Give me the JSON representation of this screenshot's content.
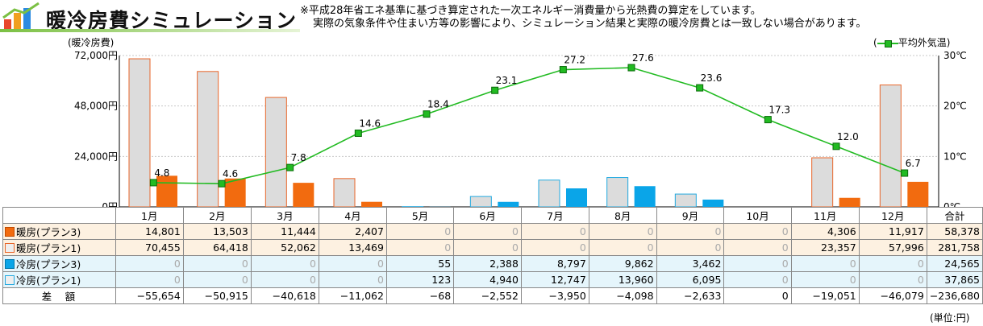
{
  "header": {
    "title": "暖冷房費シミュレーション",
    "note_line1": "※平成28年省エネ基準に基づき算定された一次エネルギー消費量から光熱費の算定をしています。",
    "note_line2": "実際の気象条件や住まい方等の影響により、シミュレーション結果と実際の暖冷房費とは一致しない場合があります。"
  },
  "chart_data": {
    "type": "bar",
    "categories": [
      "1月",
      "2月",
      "3月",
      "4月",
      "5月",
      "6月",
      "7月",
      "8月",
      "9月",
      "10月",
      "11月",
      "12月"
    ],
    "series": [
      {
        "name": "暖房(プラン1)",
        "values": [
          70455,
          64418,
          52062,
          13469,
          0,
          0,
          0,
          0,
          0,
          0,
          23357,
          57996
        ],
        "color": "#dcdcdc",
        "stroke": "#e8662a"
      },
      {
        "name": "暖房(プラン3)",
        "values": [
          14801,
          13503,
          11444,
          2407,
          0,
          0,
          0,
          0,
          0,
          0,
          4306,
          11917
        ],
        "color": "#f26b0f"
      },
      {
        "name": "冷房(プラン1)",
        "values": [
          0,
          0,
          0,
          0,
          123,
          4940,
          12747,
          13960,
          6095,
          0,
          0,
          0
        ],
        "color": "#dcdcdc",
        "stroke": "#22a9e0"
      },
      {
        "name": "冷房(プラン3)",
        "values": [
          0,
          0,
          0,
          0,
          55,
          2388,
          8797,
          9862,
          3462,
          0,
          0,
          0
        ],
        "color": "#0aa5e8"
      }
    ],
    "line": {
      "name": "平均外気温",
      "values": [
        4.8,
        4.6,
        7.8,
        14.6,
        18.4,
        23.1,
        27.2,
        27.6,
        23.6,
        17.3,
        12.0,
        6.7
      ],
      "labels": [
        "4.8",
        "4.6",
        "7.8",
        "14.6",
        "18.4",
        "23.1",
        "27.2",
        "27.6",
        "23.6",
        "17.3",
        "12.0",
        "6.7"
      ],
      "color": "#22bb22"
    },
    "ylabel": "(暖冷房費)",
    "ylim": [
      0,
      72000
    ],
    "yticks": [
      "0円",
      "24,000円",
      "48,000円",
      "72,000円"
    ],
    "ytick_values": [
      0,
      24000,
      48000,
      72000
    ],
    "y2lim": [
      0,
      30
    ],
    "y2ticks": [
      "0℃",
      "10℃",
      "20℃",
      "30℃"
    ],
    "y2tick_values": [
      0,
      10,
      20,
      30
    ],
    "legend_label": "(━■━ 平均外気温)",
    "legend_position": "top-right",
    "grid": true
  },
  "table": {
    "total_header": "合計",
    "rows": [
      {
        "label": "暖房(プラン3)",
        "swatch": "#f26b0f",
        "swatch_border": "#c04a00",
        "values": [
          "14,801",
          "13,503",
          "11,444",
          "2,407",
          "0",
          "0",
          "0",
          "0",
          "0",
          "0",
          "4,306",
          "11,917"
        ],
        "total": "58,378"
      },
      {
        "label": "暖房(プラン1)",
        "swatch": "#eeeeee",
        "swatch_border": "#e8662a",
        "values": [
          "70,455",
          "64,418",
          "52,062",
          "13,469",
          "0",
          "0",
          "0",
          "0",
          "0",
          "0",
          "23,357",
          "57,996"
        ],
        "total": "281,758"
      },
      {
        "label": "冷房(プラン3)",
        "swatch": "#0aa5e8",
        "swatch_border": "#0077aa",
        "values": [
          "0",
          "0",
          "0",
          "0",
          "55",
          "2,388",
          "8,797",
          "9,862",
          "3,462",
          "0",
          "0",
          "0"
        ],
        "total": "24,565"
      },
      {
        "label": "冷房(プラン1)",
        "swatch": "#eeeeee",
        "swatch_border": "#22a9e0",
        "values": [
          "0",
          "0",
          "0",
          "0",
          "123",
          "4,940",
          "12,747",
          "13,960",
          "6,095",
          "0",
          "0",
          "0"
        ],
        "total": "37,865"
      },
      {
        "label": "差　額",
        "swatch": "",
        "swatch_border": "",
        "values": [
          "−55,654",
          "−50,915",
          "−40,618",
          "−11,062",
          "−68",
          "−2,552",
          "−3,950",
          "−4,098",
          "−2,633",
          "0",
          "−19,051",
          "−46,079"
        ],
        "total": "−236,680"
      }
    ],
    "unit": "(単位:円)"
  },
  "colors": {
    "accent_green": "#7bc043",
    "heating": "#f26b0f",
    "cooling": "#0aa5e8",
    "line": "#22bb22"
  }
}
